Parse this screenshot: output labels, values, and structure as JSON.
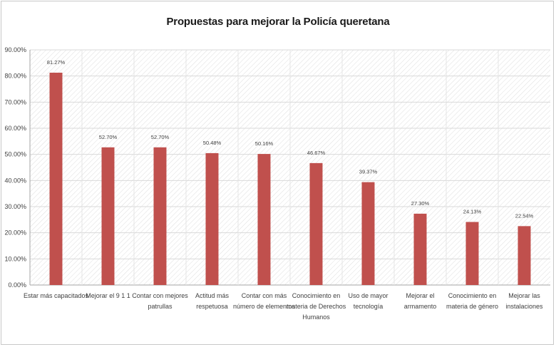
{
  "chart_data": {
    "type": "bar",
    "title": "Propuestas para mejorar la Policía queretana",
    "xlabel": "",
    "ylabel": "",
    "ylim": [
      0,
      0.9
    ],
    "yticks": [
      "0.00%",
      "10.00%",
      "20.00%",
      "30.00%",
      "40.00%",
      "50.00%",
      "60.00%",
      "70.00%",
      "80.00%",
      "90.00%"
    ],
    "grid": true,
    "bar_color": "#c0504d",
    "categories": [
      [
        "Estar más capacitados"
      ],
      [
        "Mejorar el 9 1 1"
      ],
      [
        "Contar con mejores",
        "patrullas"
      ],
      [
        "Actitud más",
        "respetuosa"
      ],
      [
        "Contar con más",
        "número de elementos"
      ],
      [
        "Conocimiento en",
        "materia de Derechos",
        "Humanos"
      ],
      [
        "Uso de mayor",
        "tecnología"
      ],
      [
        "Mejorar el",
        "armamento"
      ],
      [
        "Conocimiento en",
        "materia de género"
      ],
      [
        "Mejorar las",
        "instalaciones"
      ]
    ],
    "values": [
      0.8127,
      0.527,
      0.527,
      0.5048,
      0.5016,
      0.4667,
      0.3937,
      0.273,
      0.2413,
      0.2254
    ],
    "data_labels": [
      "81.27%",
      "52.70%",
      "52.70%",
      "50.48%",
      "50.16%",
      "46.67%",
      "39.37%",
      "27.30%",
      "24.13%",
      "22.54%"
    ]
  }
}
